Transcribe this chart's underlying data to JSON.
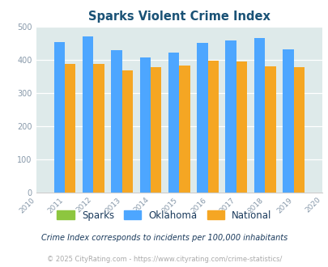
{
  "title": "Sparks Violent Crime Index",
  "all_years": [
    2010,
    2011,
    2012,
    2013,
    2014,
    2015,
    2016,
    2017,
    2018,
    2019,
    2020
  ],
  "bar_years": [
    2011,
    2012,
    2013,
    2014,
    2015,
    2016,
    2017,
    2018,
    2019
  ],
  "sparks": [
    0,
    0,
    0,
    0,
    0,
    0,
    0,
    0,
    0
  ],
  "oklahoma": [
    454,
    470,
    428,
    406,
    422,
    451,
    459,
    467,
    431
  ],
  "national": [
    388,
    387,
    367,
    377,
    383,
    398,
    394,
    380,
    379
  ],
  "xlim": [
    2010,
    2020
  ],
  "ylim": [
    0,
    500
  ],
  "yticks": [
    0,
    100,
    200,
    300,
    400,
    500
  ],
  "color_sparks": "#8dc63f",
  "color_oklahoma": "#4da6ff",
  "color_national": "#f5a623",
  "bg_color": "#deeaea",
  "title_color": "#1a5276",
  "axis_label_color": "#8899aa",
  "legend_label_color": "#1a3a5c",
  "footnote1_color": "#1a3a5c",
  "footnote2_color": "#aaaaaa",
  "legend_label_sparks": "Sparks",
  "legend_label_oklahoma": "Oklahoma",
  "legend_label_national": "National",
  "footnote1": "Crime Index corresponds to incidents per 100,000 inhabitants",
  "footnote2": "© 2025 CityRating.com - https://www.cityrating.com/crime-statistics/",
  "bar_width": 0.38
}
